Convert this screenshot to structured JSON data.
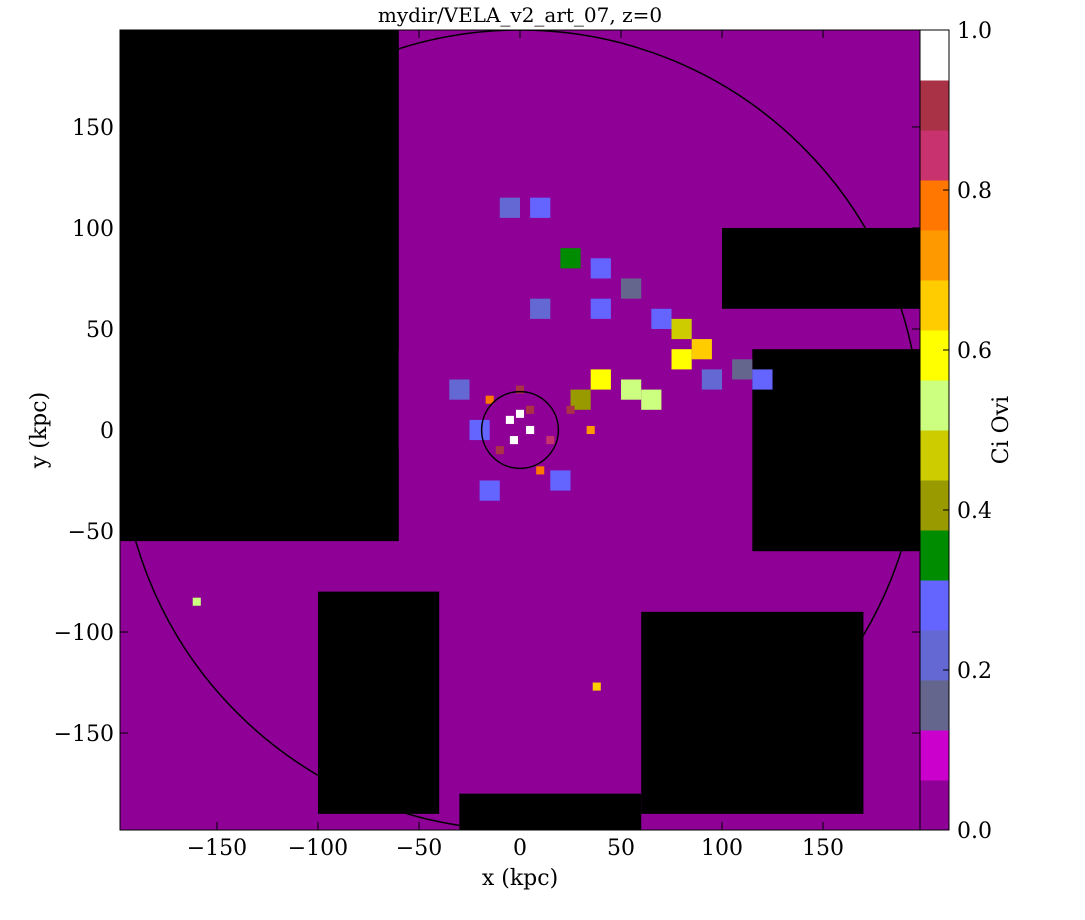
{
  "chart_data": {
    "type": "heatmap",
    "title": "mydir/VELA_v2_art_07, z=0",
    "xlabel": "x  (kpc)",
    "ylabel": "y  (kpc)",
    "colorbar_label": "Ci Ovi",
    "xlim": [
      -198,
      198
    ],
    "ylim": [
      -198,
      198
    ],
    "clim": [
      0.0,
      1.0
    ],
    "x_ticks": [
      -150,
      -100,
      -50,
      0,
      50,
      100,
      150
    ],
    "x_tick_labels": [
      "−150",
      "−100",
      "−50",
      "0",
      "50",
      "100",
      "150"
    ],
    "y_ticks": [
      -150,
      -100,
      -50,
      0,
      50,
      100,
      150
    ],
    "y_tick_labels": [
      "−150",
      "−100",
      "−50",
      "0",
      "50",
      "100",
      "150"
    ],
    "colorbar_ticks": [
      0.0,
      0.2,
      0.4,
      0.6,
      0.8,
      1.0
    ],
    "colorbar_tick_labels": [
      "0.0",
      "0.2",
      "0.4",
      "0.6",
      "0.8",
      "1.0"
    ],
    "colormap_levels": [
      "#000000",
      "#8e0096",
      "#cc00cc",
      "#65668e",
      "#6468d2",
      "#6464ff",
      "#008c00",
      "#999900",
      "#cccc00",
      "#ffff00",
      "#ccff80",
      "#99cc00",
      "#cccc00",
      "#ffff00",
      "#ffcc00",
      "#ff9900",
      "#ff7700",
      "#c8326e",
      "#aa3246",
      "#ffffff"
    ],
    "colorbar_levels": [
      "#8e0096",
      "#cc00cc",
      "#65668e",
      "#6468d2",
      "#6464ff",
      "#008c00",
      "#999900",
      "#cccc00",
      "#ccff80",
      "#ffff00",
      "#ffcc00",
      "#ff9900",
      "#ff7700",
      "#c8326e",
      "#aa3246",
      "#ffffff"
    ],
    "circles": [
      {
        "cx": 0,
        "cy": 0,
        "r": 19
      },
      {
        "cx": 0,
        "cy": 0,
        "r": 198
      }
    ],
    "background_value": 0.0,
    "regions": [
      {
        "x": [
          -198,
          198
        ],
        "y": [
          -198,
          198
        ],
        "v": 0.05
      },
      {
        "x": [
          -198,
          -60
        ],
        "y": [
          -55,
          198
        ],
        "v": -1
      },
      {
        "x": [
          -60,
          60
        ],
        "y": [
          -10,
          40
        ],
        "v": 0.05
      },
      {
        "x": [
          100,
          198
        ],
        "y": [
          60,
          100
        ],
        "v": -1
      },
      {
        "x": [
          115,
          198
        ],
        "y": [
          -60,
          40
        ],
        "v": -1
      },
      {
        "x": [
          -100,
          -40
        ],
        "y": [
          -190,
          -80
        ],
        "v": -1
      },
      {
        "x": [
          60,
          170
        ],
        "y": [
          -190,
          -90
        ],
        "v": -1
      },
      {
        "x": [
          -30,
          60
        ],
        "y": [
          -198,
          -180
        ],
        "v": -1
      }
    ],
    "patches": [
      {
        "x": -5,
        "y": 110,
        "v": 0.22
      },
      {
        "x": 10,
        "y": 110,
        "v": 0.3
      },
      {
        "x": 25,
        "y": 85,
        "v": 0.35
      },
      {
        "x": 40,
        "y": 80,
        "v": 0.25
      },
      {
        "x": 55,
        "y": 70,
        "v": 0.18
      },
      {
        "x": 70,
        "y": 55,
        "v": 0.3
      },
      {
        "x": 80,
        "y": 50,
        "v": 0.45
      },
      {
        "x": 90,
        "y": 40,
        "v": 0.65
      },
      {
        "x": 80,
        "y": 35,
        "v": 0.62
      },
      {
        "x": 95,
        "y": 25,
        "v": 0.22
      },
      {
        "x": 110,
        "y": 30,
        "v": 0.18
      },
      {
        "x": 120,
        "y": 25,
        "v": 0.3
      },
      {
        "x": 65,
        "y": 15,
        "v": 0.5
      },
      {
        "x": 55,
        "y": 20,
        "v": 0.55
      },
      {
        "x": 40,
        "y": 25,
        "v": 0.6
      },
      {
        "x": 30,
        "y": 15,
        "v": 0.4
      },
      {
        "x": -20,
        "y": 0,
        "v": 0.3
      },
      {
        "x": -30,
        "y": 20,
        "v": 0.22
      },
      {
        "x": 10,
        "y": 60,
        "v": 0.2
      },
      {
        "x": 40,
        "y": 60,
        "v": 0.28
      },
      {
        "x": -15,
        "y": -30,
        "v": 0.25
      },
      {
        "x": 20,
        "y": -25,
        "v": 0.28
      }
    ],
    "hotspots": [
      {
        "x": -5,
        "y": 5,
        "v": 0.95
      },
      {
        "x": 5,
        "y": 10,
        "v": 0.92
      },
      {
        "x": -10,
        "y": -10,
        "v": 0.9
      },
      {
        "x": 15,
        "y": -5,
        "v": 0.85
      },
      {
        "x": 25,
        "y": 10,
        "v": 0.88
      },
      {
        "x": 0,
        "y": 20,
        "v": 0.93
      },
      {
        "x": -15,
        "y": 15,
        "v": 0.8
      },
      {
        "x": 10,
        "y": -20,
        "v": 0.75
      },
      {
        "x": 35,
        "y": 0,
        "v": 0.7
      },
      {
        "x": 5,
        "y": 0,
        "v": 1.0
      },
      {
        "x": 0,
        "y": 8,
        "v": 1.0
      },
      {
        "x": -3,
        "y": -5,
        "v": 1.0
      },
      {
        "x": 38,
        "y": -127,
        "v": 0.65
      },
      {
        "x": -160,
        "y": -85,
        "v": 0.5
      }
    ]
  }
}
